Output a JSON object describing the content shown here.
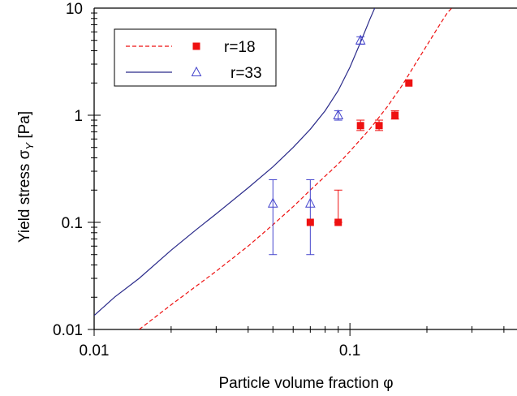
{
  "chart_data": {
    "type": "scatter",
    "xlabel": "Particle volume fraction φ",
    "ylabel": "Yield stress σ",
    "ylabel_sub": "Y",
    "ylabel_unit": " [Pa]",
    "xscale": "log",
    "yscale": "log",
    "xlim": [
      0.01,
      0.45
    ],
    "ylim": [
      0.01,
      10
    ],
    "grid": false,
    "legend_position": "top-left",
    "x_ticks": [
      {
        "value": 0.01,
        "label": "0.01"
      },
      {
        "value": 0.1,
        "label": "0.1"
      }
    ],
    "y_ticks": [
      {
        "value": 0.01,
        "label": "0.01"
      },
      {
        "value": 0.1,
        "label": "0.1"
      },
      {
        "value": 1,
        "label": "1"
      },
      {
        "value": 10,
        "label": "10"
      }
    ],
    "series": [
      {
        "name": "r=18",
        "color": "#ee1111",
        "marker": "filled-square",
        "line_style": "dashed",
        "points": [
          {
            "x": 0.07,
            "y": 0.1
          },
          {
            "x": 0.09,
            "y": 0.1,
            "err_low": 0.1,
            "err_high": 0.2
          },
          {
            "x": 0.11,
            "y": 0.8,
            "err_low": 0.72,
            "err_high": 0.9
          },
          {
            "x": 0.13,
            "y": 0.8,
            "err_low": 0.72,
            "err_high": 0.9
          },
          {
            "x": 0.15,
            "y": 1.0,
            "err_low": 0.92,
            "err_high": 1.1
          },
          {
            "x": 0.17,
            "y": 2.0
          }
        ],
        "curve": [
          {
            "x": 0.015,
            "y": 0.01
          },
          {
            "x": 0.02,
            "y": 0.017
          },
          {
            "x": 0.03,
            "y": 0.035
          },
          {
            "x": 0.04,
            "y": 0.06
          },
          {
            "x": 0.05,
            "y": 0.095
          },
          {
            "x": 0.06,
            "y": 0.14
          },
          {
            "x": 0.07,
            "y": 0.2
          },
          {
            "x": 0.08,
            "y": 0.27
          },
          {
            "x": 0.09,
            "y": 0.35
          },
          {
            "x": 0.1,
            "y": 0.46
          },
          {
            "x": 0.12,
            "y": 0.75
          },
          {
            "x": 0.14,
            "y": 1.2
          },
          {
            "x": 0.16,
            "y": 1.9
          },
          {
            "x": 0.18,
            "y": 3.0
          },
          {
            "x": 0.2,
            "y": 4.5
          },
          {
            "x": 0.22,
            "y": 6.5
          },
          {
            "x": 0.24,
            "y": 9.0
          },
          {
            "x": 0.25,
            "y": 10.0
          }
        ]
      },
      {
        "name": "r=33",
        "color": "#2a2a8a",
        "marker_color": "#4444cc",
        "marker": "open-triangle",
        "line_style": "solid",
        "points": [
          {
            "x": 0.05,
            "y": 0.15,
            "err_low": 0.05,
            "err_high": 0.25
          },
          {
            "x": 0.07,
            "y": 0.15,
            "err_low": 0.05,
            "err_high": 0.25
          },
          {
            "x": 0.09,
            "y": 1.0,
            "err_low": 0.9,
            "err_high": 1.1
          },
          {
            "x": 0.11,
            "y": 5.0,
            "err_low": 4.6,
            "err_high": 5.4
          }
        ],
        "curve": [
          {
            "x": 0.01,
            "y": 0.0135
          },
          {
            "x": 0.012,
            "y": 0.02
          },
          {
            "x": 0.015,
            "y": 0.03
          },
          {
            "x": 0.02,
            "y": 0.055
          },
          {
            "x": 0.025,
            "y": 0.085
          },
          {
            "x": 0.03,
            "y": 0.12
          },
          {
            "x": 0.04,
            "y": 0.21
          },
          {
            "x": 0.05,
            "y": 0.33
          },
          {
            "x": 0.06,
            "y": 0.5
          },
          {
            "x": 0.07,
            "y": 0.74
          },
          {
            "x": 0.08,
            "y": 1.1
          },
          {
            "x": 0.09,
            "y": 1.7
          },
          {
            "x": 0.1,
            "y": 2.8
          },
          {
            "x": 0.11,
            "y": 4.8
          },
          {
            "x": 0.12,
            "y": 8.0
          },
          {
            "x": 0.125,
            "y": 10.0
          }
        ]
      }
    ]
  }
}
